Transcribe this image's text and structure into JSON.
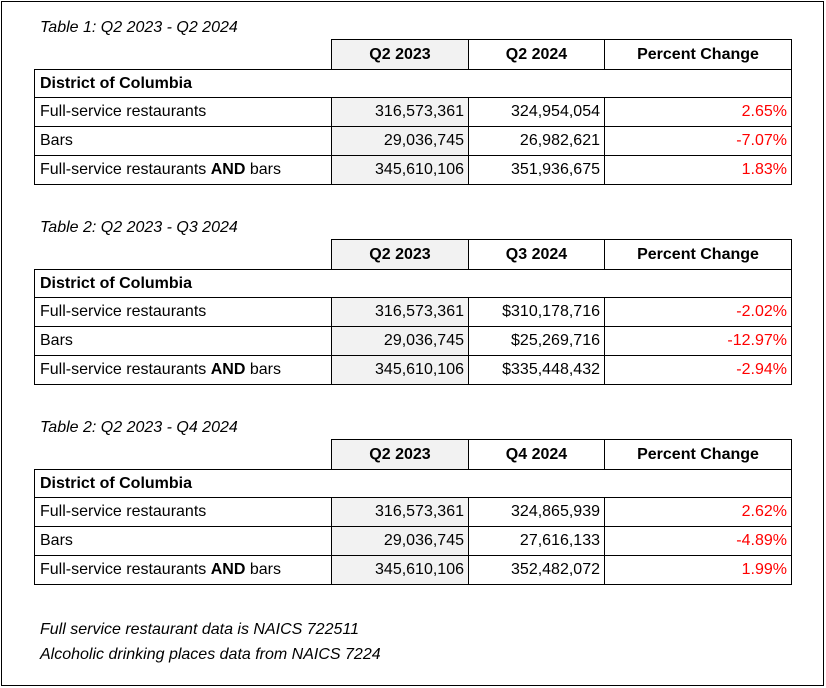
{
  "tables": [
    {
      "caption": "Table 1: Q2 2023 - Q2 2024",
      "headers": [
        "Q2 2023",
        "Q2 2024",
        "Percent Change"
      ],
      "group": "District of Columbia",
      "rows": [
        {
          "label": "Full-service restaurants",
          "label_bold": "",
          "label_tail": "",
          "base": "316,573,361",
          "comp": "324,954,054",
          "pct": "2.65%"
        },
        {
          "label": "Bars",
          "label_bold": "",
          "label_tail": "",
          "base": "29,036,745",
          "comp": "26,982,621",
          "pct": "-7.07%"
        },
        {
          "label": "Full-service restaurants ",
          "label_bold": "AND",
          "label_tail": " bars",
          "base": "345,610,106",
          "comp": "351,936,675",
          "pct": "1.83%"
        }
      ]
    },
    {
      "caption": "Table 2: Q2 2023 - Q3 2024",
      "headers": [
        "Q2 2023",
        "Q3 2024",
        "Percent Change"
      ],
      "group": "District of Columbia",
      "rows": [
        {
          "label": "Full-service restaurants",
          "label_bold": "",
          "label_tail": "",
          "base": "316,573,361",
          "comp": "$310,178,716",
          "pct": "-2.02%"
        },
        {
          "label": "Bars",
          "label_bold": "",
          "label_tail": "",
          "base": "29,036,745",
          "comp": "$25,269,716",
          "pct": "-12.97%"
        },
        {
          "label": "Full-service restaurants ",
          "label_bold": "AND",
          "label_tail": " bars",
          "base": "345,610,106",
          "comp": "$335,448,432",
          "pct": "-2.94%"
        }
      ]
    },
    {
      "caption": "Table 2: Q2 2023 - Q4 2024",
      "headers": [
        "Q2 2023",
        "Q4 2024",
        "Percent Change"
      ],
      "group": "District of Columbia",
      "rows": [
        {
          "label": "Full-service restaurants",
          "label_bold": "",
          "label_tail": "",
          "base": "316,573,361",
          "comp": "324,865,939",
          "pct": "2.62%"
        },
        {
          "label": "Bars",
          "label_bold": "",
          "label_tail": "",
          "base": "29,036,745",
          "comp": "27,616,133",
          "pct": "-4.89%"
        },
        {
          "label": "Full-service restaurants ",
          "label_bold": "AND",
          "label_tail": " bars",
          "base": "345,610,106",
          "comp": "352,482,072",
          "pct": "1.99%"
        }
      ]
    }
  ],
  "notes": [
    "Full service restaurant data is NAICS 722511",
    "Alcoholic drinking places data from NAICS 7224"
  ],
  "colors": {
    "percent_text": "#ff0000",
    "shaded_column": "#f2f2f2"
  }
}
